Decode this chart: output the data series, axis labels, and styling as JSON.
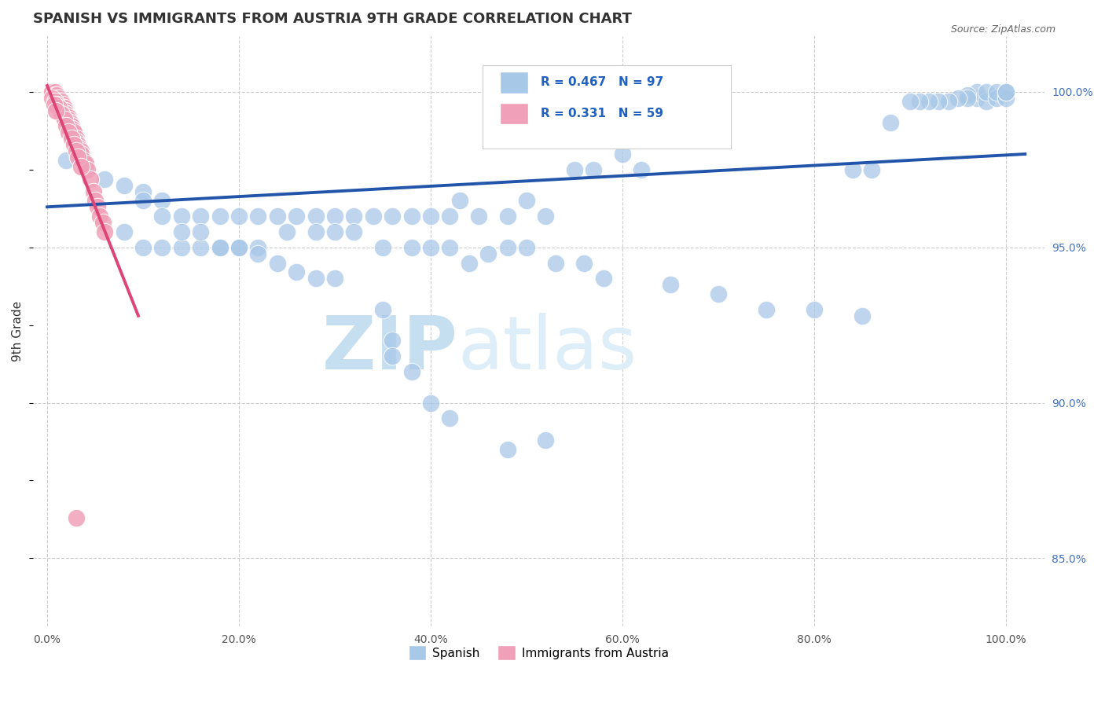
{
  "title": "SPANISH VS IMMIGRANTS FROM AUSTRIA 9TH GRADE CORRELATION CHART",
  "source": "Source: ZipAtlas.com",
  "ylabel": "9th Grade",
  "y_ticks": [
    0.85,
    0.9,
    0.95,
    1.0
  ],
  "y_tick_labels": [
    "85.0%",
    "90.0%",
    "95.0%",
    "100.0%"
  ],
  "x_ticks": [
    0.0,
    0.2,
    0.4,
    0.6,
    0.8,
    1.0
  ],
  "x_tick_labels": [
    "0.0%",
    "20.0%",
    "40.0%",
    "60.0%",
    "80.0%",
    "100.0%"
  ],
  "legend_R_blue": "R = 0.467",
  "legend_N_blue": "N = 97",
  "legend_R_pink": "R = 0.331",
  "legend_N_pink": "N = 59",
  "legend_label_blue": "Spanish",
  "legend_label_pink": "Immigrants from Austria",
  "blue_color": "#a8c8e8",
  "pink_color": "#f0a0b8",
  "trend_blue_color": "#2255aa",
  "trend_pink_color": "#dd4477",
  "blue_trend_x": [
    0.0,
    1.02
  ],
  "blue_trend_y": [
    0.963,
    0.98
  ],
  "pink_trend_x": [
    0.0,
    0.095
  ],
  "pink_trend_y": [
    1.002,
    0.928
  ],
  "blue_scatter_x": [
    0.97,
    0.97,
    0.98,
    0.98,
    0.99,
    0.99,
    1.0,
    1.0,
    1.0,
    0.96,
    0.96,
    0.95,
    0.94,
    0.93,
    0.92,
    0.91,
    0.9,
    0.88,
    0.86,
    0.84,
    0.6,
    0.62,
    0.55,
    0.57,
    0.5,
    0.52,
    0.48,
    0.45,
    0.43,
    0.42,
    0.4,
    0.38,
    0.36,
    0.34,
    0.32,
    0.3,
    0.28,
    0.26,
    0.24,
    0.22,
    0.2,
    0.18,
    0.16,
    0.14,
    0.12,
    0.1,
    0.08,
    0.06,
    0.04,
    0.02,
    0.08,
    0.1,
    0.12,
    0.14,
    0.16,
    0.18,
    0.2,
    0.22,
    0.25,
    0.28,
    0.3,
    0.32,
    0.35,
    0.38,
    0.4,
    0.42,
    0.44,
    0.46,
    0.48,
    0.5,
    0.53,
    0.56,
    0.58,
    0.65,
    0.7,
    0.75,
    0.8,
    0.85,
    0.48,
    0.52,
    0.36,
    0.36,
    0.38,
    0.4,
    0.42,
    0.35,
    0.3,
    0.28,
    0.26,
    0.24,
    0.22,
    0.2,
    0.18,
    0.16,
    0.14,
    0.12,
    0.1
  ],
  "blue_scatter_y": [
    0.998,
    1.0,
    0.997,
    1.0,
    0.998,
    1.0,
    0.998,
    1.0,
    1.0,
    0.999,
    0.998,
    0.998,
    0.997,
    0.997,
    0.997,
    0.997,
    0.997,
    0.99,
    0.975,
    0.975,
    0.98,
    0.975,
    0.975,
    0.975,
    0.965,
    0.96,
    0.96,
    0.96,
    0.965,
    0.96,
    0.96,
    0.96,
    0.96,
    0.96,
    0.96,
    0.96,
    0.96,
    0.96,
    0.96,
    0.96,
    0.96,
    0.96,
    0.96,
    0.96,
    0.965,
    0.968,
    0.97,
    0.972,
    0.975,
    0.978,
    0.955,
    0.95,
    0.95,
    0.95,
    0.95,
    0.95,
    0.95,
    0.95,
    0.955,
    0.955,
    0.955,
    0.955,
    0.95,
    0.95,
    0.95,
    0.95,
    0.945,
    0.948,
    0.95,
    0.95,
    0.945,
    0.945,
    0.94,
    0.938,
    0.935,
    0.93,
    0.93,
    0.928,
    0.885,
    0.888,
    0.92,
    0.915,
    0.91,
    0.9,
    0.895,
    0.93,
    0.94,
    0.94,
    0.942,
    0.945,
    0.948,
    0.95,
    0.95,
    0.955,
    0.955,
    0.96,
    0.965
  ],
  "pink_scatter_x": [
    0.005,
    0.005,
    0.008,
    0.008,
    0.01,
    0.01,
    0.012,
    0.012,
    0.014,
    0.015,
    0.015,
    0.016,
    0.017,
    0.018,
    0.018,
    0.019,
    0.02,
    0.02,
    0.021,
    0.022,
    0.022,
    0.023,
    0.024,
    0.025,
    0.025,
    0.026,
    0.028,
    0.03,
    0.03,
    0.032,
    0.033,
    0.035,
    0.035,
    0.038,
    0.04,
    0.042,
    0.045,
    0.048,
    0.05,
    0.052,
    0.055,
    0.058,
    0.06,
    0.005,
    0.008,
    0.01,
    0.012,
    0.015,
    0.018,
    0.02,
    0.022,
    0.025,
    0.028,
    0.03,
    0.032,
    0.035,
    0.007,
    0.009,
    0.03
  ],
  "pink_scatter_y": [
    1.0,
    1.0,
    1.0,
    0.999,
    0.999,
    0.998,
    0.998,
    0.997,
    0.997,
    0.997,
    0.996,
    0.996,
    0.995,
    0.995,
    0.994,
    0.994,
    0.993,
    0.993,
    0.992,
    0.992,
    0.991,
    0.99,
    0.99,
    0.989,
    0.988,
    0.988,
    0.987,
    0.985,
    0.984,
    0.983,
    0.982,
    0.981,
    0.98,
    0.978,
    0.977,
    0.975,
    0.972,
    0.968,
    0.965,
    0.963,
    0.96,
    0.958,
    0.955,
    0.998,
    0.997,
    0.996,
    0.995,
    0.993,
    0.991,
    0.989,
    0.987,
    0.985,
    0.983,
    0.981,
    0.979,
    0.976,
    0.996,
    0.994,
    0.863
  ],
  "watermark_zip": "ZIP",
  "watermark_atlas": "atlas",
  "watermark_color": "#ddeef8",
  "figsize": [
    14.06,
    8.92
  ],
  "dpi": 100,
  "ylim_min": 0.828,
  "ylim_max": 1.018,
  "xlim_min": -0.015,
  "xlim_max": 1.04
}
